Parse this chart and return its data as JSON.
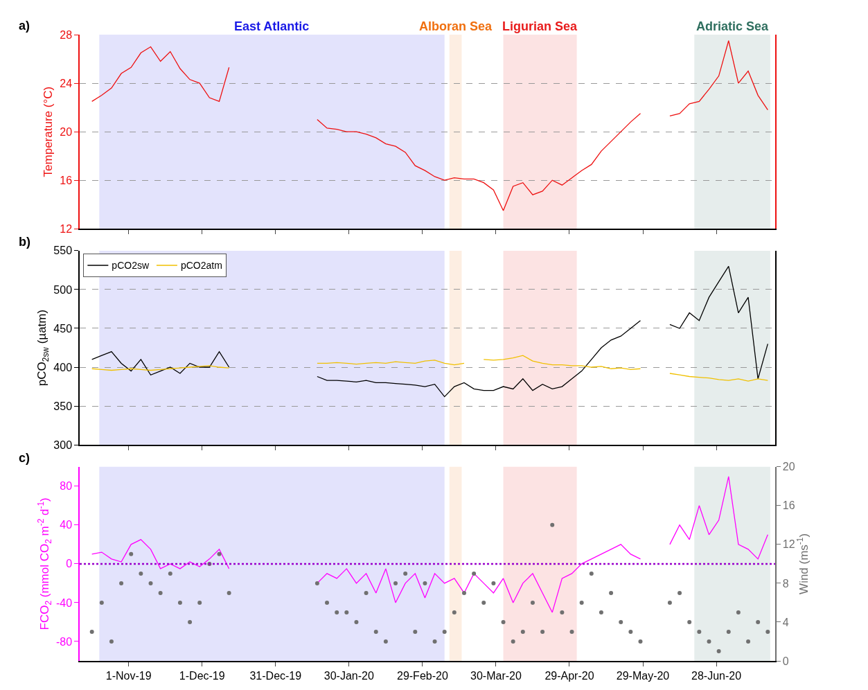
{
  "chart_data": [
    {
      "type": "line",
      "ylabel": "Temperature (°C)",
      "annotations": [
        "a)"
      ],
      "grid": "y",
      "legend": false,
      "tick_labels": "y",
      "x": [
        "2019-10-17",
        "2019-10-21",
        "2019-10-25",
        "2019-10-29",
        "2019-11-02",
        "2019-11-06",
        "2019-11-10",
        "2019-11-14",
        "2019-11-18",
        "2019-11-22",
        "2019-11-26",
        "2019-11-30",
        "2019-12-04",
        "2019-12-08",
        "2019-12-12",
        "2019-12-16",
        "2019-12-20",
        "2019-12-24",
        "2019-12-28",
        "2020-01-01",
        "2020-01-05",
        "2020-01-09",
        "2020-01-13",
        "2020-01-17",
        "2020-01-21",
        "2020-01-25",
        "2020-01-29",
        "2020-02-02",
        "2020-02-06",
        "2020-02-10",
        "2020-02-14",
        "2020-02-18",
        "2020-02-22",
        "2020-02-26",
        "2020-03-01",
        "2020-03-05",
        "2020-03-09",
        "2020-03-13",
        "2020-03-17",
        "2020-03-21",
        "2020-03-25",
        "2020-03-29",
        "2020-04-02",
        "2020-04-06",
        "2020-04-10",
        "2020-04-14",
        "2020-04-18",
        "2020-04-22",
        "2020-04-26",
        "2020-04-30",
        "2020-05-04",
        "2020-05-08",
        "2020-05-12",
        "2020-05-16",
        "2020-05-20",
        "2020-05-24",
        "2020-05-28",
        "2020-06-01",
        "2020-06-05",
        "2020-06-09",
        "2020-06-13",
        "2020-06-17",
        "2020-06-21",
        "2020-06-25",
        "2020-06-29",
        "2020-07-03",
        "2020-07-07",
        "2020-07-11",
        "2020-07-15",
        "2020-07-19"
      ],
      "series": [
        {
          "color": "#ee1111",
          "values": [
            22.5,
            23.0,
            23.6,
            24.8,
            25.3,
            26.5,
            27.0,
            25.8,
            26.6,
            25.2,
            24.3,
            24.0,
            22.8,
            22.5,
            25.3,
            null,
            null,
            null,
            null,
            null,
            null,
            null,
            null,
            21.0,
            20.3,
            20.2,
            20.0,
            20.0,
            19.8,
            19.5,
            19.0,
            18.8,
            18.3,
            17.2,
            16.8,
            16.3,
            16.0,
            16.2,
            16.1,
            16.1,
            15.8,
            15.2,
            13.5,
            15.5,
            15.8,
            14.8,
            15.1,
            16.0,
            15.6,
            16.2,
            16.8,
            17.3,
            18.4,
            19.2,
            20.0,
            20.8,
            21.5,
            null,
            null,
            21.3,
            21.5,
            22.3,
            22.5,
            23.5,
            24.6,
            27.5,
            24.0,
            25.0,
            23.0,
            21.8
          ]
        }
      ],
      "xlim": [
        "2019-10-12",
        "2020-07-22"
      ],
      "xticks": [
        {
          "value": "2019-11-01",
          "label": null
        },
        {
          "value": "2019-12-01",
          "label": null
        },
        {
          "value": "2019-12-31",
          "label": null
        },
        {
          "value": "2020-01-30",
          "label": null
        },
        {
          "value": "2020-02-29",
          "label": null
        },
        {
          "value": "2020-03-30",
          "label": null
        },
        {
          "value": "2020-04-29",
          "label": null
        },
        {
          "value": "2020-05-29",
          "label": null
        },
        {
          "value": "2020-06-28",
          "label": null
        }
      ],
      "ylim": [
        12,
        28
      ],
      "yticks": [
        12,
        16,
        20,
        24,
        28
      ],
      "bands": [
        {
          "axis": "x",
          "from": "2019-10-20",
          "to": "2020-03-09",
          "label": "East Atlantic",
          "color": "#1a1ae6"
        },
        {
          "axis": "x",
          "from": "2020-03-11",
          "to": "2020-03-16",
          "label": "Alboran Sea",
          "color": "#f07010"
        },
        {
          "axis": "x",
          "from": "2020-04-02",
          "to": "2020-05-02",
          "label": "Ligurian Sea",
          "color": "#e81c1c"
        },
        {
          "axis": "x",
          "from": "2020-06-19",
          "to": "2020-07-20",
          "label": "Adriatic Sea",
          "color": "#2f6f5f"
        }
      ]
    },
    {
      "type": "line",
      "ylabel": "pCO$_{2sw}$ (µatm)",
      "annotations": [
        "b)"
      ],
      "grid": "y",
      "legend": "top left",
      "tick_labels": "y",
      "x": [
        "2019-10-17",
        "2019-10-21",
        "2019-10-25",
        "2019-10-29",
        "2019-11-02",
        "2019-11-06",
        "2019-11-10",
        "2019-11-14",
        "2019-11-18",
        "2019-11-22",
        "2019-11-26",
        "2019-11-30",
        "2019-12-04",
        "2019-12-08",
        "2019-12-12",
        "2019-12-16",
        "2019-12-20",
        "2019-12-24",
        "2019-12-28",
        "2020-01-01",
        "2020-01-05",
        "2020-01-09",
        "2020-01-13",
        "2020-01-17",
        "2020-01-21",
        "2020-01-25",
        "2020-01-29",
        "2020-02-02",
        "2020-02-06",
        "2020-02-10",
        "2020-02-14",
        "2020-02-18",
        "2020-02-22",
        "2020-02-26",
        "2020-03-01",
        "2020-03-05",
        "2020-03-09",
        "2020-03-13",
        "2020-03-17",
        "2020-03-21",
        "2020-03-25",
        "2020-03-29",
        "2020-04-02",
        "2020-04-06",
        "2020-04-10",
        "2020-04-14",
        "2020-04-18",
        "2020-04-22",
        "2020-04-26",
        "2020-04-30",
        "2020-05-04",
        "2020-05-08",
        "2020-05-12",
        "2020-05-16",
        "2020-05-20",
        "2020-05-24",
        "2020-05-28",
        "2020-06-01",
        "2020-06-05",
        "2020-06-09",
        "2020-06-13",
        "2020-06-17",
        "2020-06-21",
        "2020-06-25",
        "2020-06-29",
        "2020-07-03",
        "2020-07-07",
        "2020-07-11",
        "2020-07-15",
        "2020-07-19"
      ],
      "series": [
        {
          "name": "pCO2sw",
          "color": "#000000",
          "values": [
            410,
            415,
            420,
            405,
            395,
            410,
            390,
            395,
            400,
            392,
            405,
            400,
            400,
            420,
            400,
            null,
            null,
            null,
            null,
            null,
            null,
            null,
            null,
            388,
            383,
            383,
            382,
            381,
            383,
            380,
            380,
            379,
            378,
            377,
            375,
            378,
            362,
            375,
            380,
            372,
            370,
            370,
            375,
            372,
            385,
            370,
            378,
            372,
            375,
            385,
            395,
            410,
            425,
            435,
            440,
            450,
            460,
            null,
            null,
            455,
            450,
            470,
            460,
            490,
            510,
            530,
            470,
            490,
            385,
            430
          ]
        },
        {
          "name": "pCO2atm",
          "color": "#f0c000",
          "values": [
            398,
            397,
            396,
            397,
            398,
            397,
            396,
            397,
            398,
            399,
            400,
            401,
            402,
            400,
            399,
            null,
            null,
            null,
            null,
            null,
            null,
            null,
            null,
            405,
            405,
            406,
            405,
            404,
            405,
            406,
            405,
            407,
            406,
            405,
            408,
            409,
            405,
            403,
            405,
            null,
            410,
            409,
            410,
            412,
            415,
            408,
            405,
            403,
            403,
            402,
            402,
            400,
            401,
            398,
            399,
            397,
            398,
            null,
            null,
            392,
            390,
            388,
            387,
            386,
            384,
            383,
            385,
            382,
            385,
            383
          ]
        }
      ],
      "xlim": [
        "2019-10-12",
        "2020-07-22"
      ],
      "xticks": [
        {
          "value": "2019-11-01",
          "label": null
        },
        {
          "value": "2019-12-01",
          "label": null
        },
        {
          "value": "2019-12-31",
          "label": null
        },
        {
          "value": "2020-01-30",
          "label": null
        },
        {
          "value": "2020-02-29",
          "label": null
        },
        {
          "value": "2020-03-30",
          "label": null
        },
        {
          "value": "2020-04-29",
          "label": null
        },
        {
          "value": "2020-05-29",
          "label": null
        },
        {
          "value": "2020-06-28",
          "label": null
        }
      ],
      "ylim": [
        300,
        550
      ],
      "yticks": [
        300,
        350,
        400,
        450,
        500,
        550
      ],
      "bands": [
        {
          "axis": "x",
          "from": "2019-10-20",
          "to": "2020-03-09",
          "color": "#1a1ae6"
        },
        {
          "axis": "x",
          "from": "2020-03-11",
          "to": "2020-03-16",
          "color": "#f07010"
        },
        {
          "axis": "x",
          "from": "2020-04-02",
          "to": "2020-05-02",
          "color": "#e81c1c"
        },
        {
          "axis": "x",
          "from": "2020-06-19",
          "to": "2020-07-20",
          "color": "#2f6f5f"
        }
      ]
    },
    {
      "type": "line",
      "ylabel": "FCO$_{2}$ (mmol CO$_{2}$ m$^{-2}$ d$^{-1}$)",
      "y2label": "Wind (ms$^{-1}$)",
      "annotations": [
        "c)"
      ],
      "grid": false,
      "legend": false,
      "x": [
        "2019-10-17",
        "2019-10-21",
        "2019-10-25",
        "2019-10-29",
        "2019-11-02",
        "2019-11-06",
        "2019-11-10",
        "2019-11-14",
        "2019-11-18",
        "2019-11-22",
        "2019-11-26",
        "2019-11-30",
        "2019-12-04",
        "2019-12-08",
        "2019-12-12",
        "2019-12-16",
        "2019-12-20",
        "2019-12-24",
        "2019-12-28",
        "2020-01-01",
        "2020-01-05",
        "2020-01-09",
        "2020-01-13",
        "2020-01-17",
        "2020-01-21",
        "2020-01-25",
        "2020-01-29",
        "2020-02-02",
        "2020-02-06",
        "2020-02-10",
        "2020-02-14",
        "2020-02-18",
        "2020-02-22",
        "2020-02-26",
        "2020-03-01",
        "2020-03-05",
        "2020-03-09",
        "2020-03-13",
        "2020-03-17",
        "2020-03-21",
        "2020-03-25",
        "2020-03-29",
        "2020-04-02",
        "2020-04-06",
        "2020-04-10",
        "2020-04-14",
        "2020-04-18",
        "2020-04-22",
        "2020-04-26",
        "2020-04-30",
        "2020-05-04",
        "2020-05-08",
        "2020-05-12",
        "2020-05-16",
        "2020-05-20",
        "2020-05-24",
        "2020-05-28",
        "2020-06-01",
        "2020-06-05",
        "2020-06-09",
        "2020-06-13",
        "2020-06-17",
        "2020-06-21",
        "2020-06-25",
        "2020-06-29",
        "2020-07-03",
        "2020-07-07",
        "2020-07-11",
        "2020-07-15",
        "2020-07-19"
      ],
      "series": [
        {
          "type": "scatter",
          "axis": "y2",
          "marker": "circle",
          "color": "#707070",
          "values": [
            3,
            6,
            2,
            8,
            11,
            9,
            8,
            7,
            9,
            6,
            4,
            6,
            10,
            11,
            7,
            null,
            null,
            null,
            null,
            null,
            null,
            null,
            null,
            8,
            6,
            5,
            5,
            4,
            7,
            3,
            2,
            8,
            9,
            3,
            8,
            2,
            3,
            5,
            7,
            9,
            6,
            8,
            4,
            2,
            3,
            6,
            3,
            14,
            5,
            3,
            6,
            9,
            5,
            7,
            4,
            3,
            2,
            null,
            null,
            6,
            7,
            4,
            3,
            2,
            1,
            3,
            5,
            2,
            4,
            3
          ]
        },
        {
          "type": "line",
          "color": "#ff00ff",
          "values": [
            10,
            12,
            5,
            2,
            20,
            25,
            15,
            -5,
            0,
            -5,
            2,
            -3,
            5,
            15,
            -5,
            null,
            null,
            null,
            null,
            null,
            null,
            null,
            null,
            -20,
            -10,
            -15,
            -5,
            -20,
            -10,
            -30,
            -5,
            -40,
            -20,
            -10,
            -35,
            -10,
            -20,
            -15,
            -30,
            -10,
            -20,
            -30,
            -15,
            -40,
            -20,
            -10,
            -30,
            -50,
            -15,
            -10,
            0,
            5,
            10,
            15,
            20,
            10,
            5,
            null,
            null,
            20,
            40,
            25,
            60,
            30,
            45,
            90,
            20,
            15,
            5,
            30
          ]
        }
      ],
      "xlim": [
        "2019-10-12",
        "2020-07-22"
      ],
      "xticks": [
        {
          "value": "2019-11-01",
          "label": "1-Nov-19"
        },
        {
          "value": "2019-12-01",
          "label": "1-Dec-19"
        },
        {
          "value": "2019-12-31",
          "label": "31-Dec-19"
        },
        {
          "value": "2020-01-30",
          "label": "30-Jan-20"
        },
        {
          "value": "2020-02-29",
          "label": "29-Feb-20"
        },
        {
          "value": "2020-03-30",
          "label": "30-Mar-20"
        },
        {
          "value": "2020-04-29",
          "label": "29-Apr-20"
        },
        {
          "value": "2020-05-29",
          "label": "29-May-20"
        },
        {
          "value": "2020-06-28",
          "label": "28-Jun-20"
        }
      ],
      "ylim": [
        -100,
        100
      ],
      "yticks": [
        -80,
        -40,
        0,
        40,
        80
      ],
      "y2lim": [
        0,
        20
      ],
      "y2ticks": [
        0,
        4,
        8,
        12,
        16,
        20
      ],
      "ref_lines": [
        {
          "axis": "y",
          "value": 0,
          "color": "#9900cc",
          "line_style": "dotted"
        }
      ],
      "bands": [
        {
          "axis": "x",
          "from": "2019-10-20",
          "to": "2020-03-09",
          "color": "#1a1ae6"
        },
        {
          "axis": "x",
          "from": "2020-03-11",
          "to": "2020-03-16",
          "color": "#f07010"
        },
        {
          "axis": "x",
          "from": "2020-04-02",
          "to": "2020-05-02",
          "color": "#e81c1c"
        },
        {
          "axis": "x",
          "from": "2020-06-19",
          "to": "2020-07-20",
          "color": "#2f6f5f"
        }
      ]
    }
  ]
}
